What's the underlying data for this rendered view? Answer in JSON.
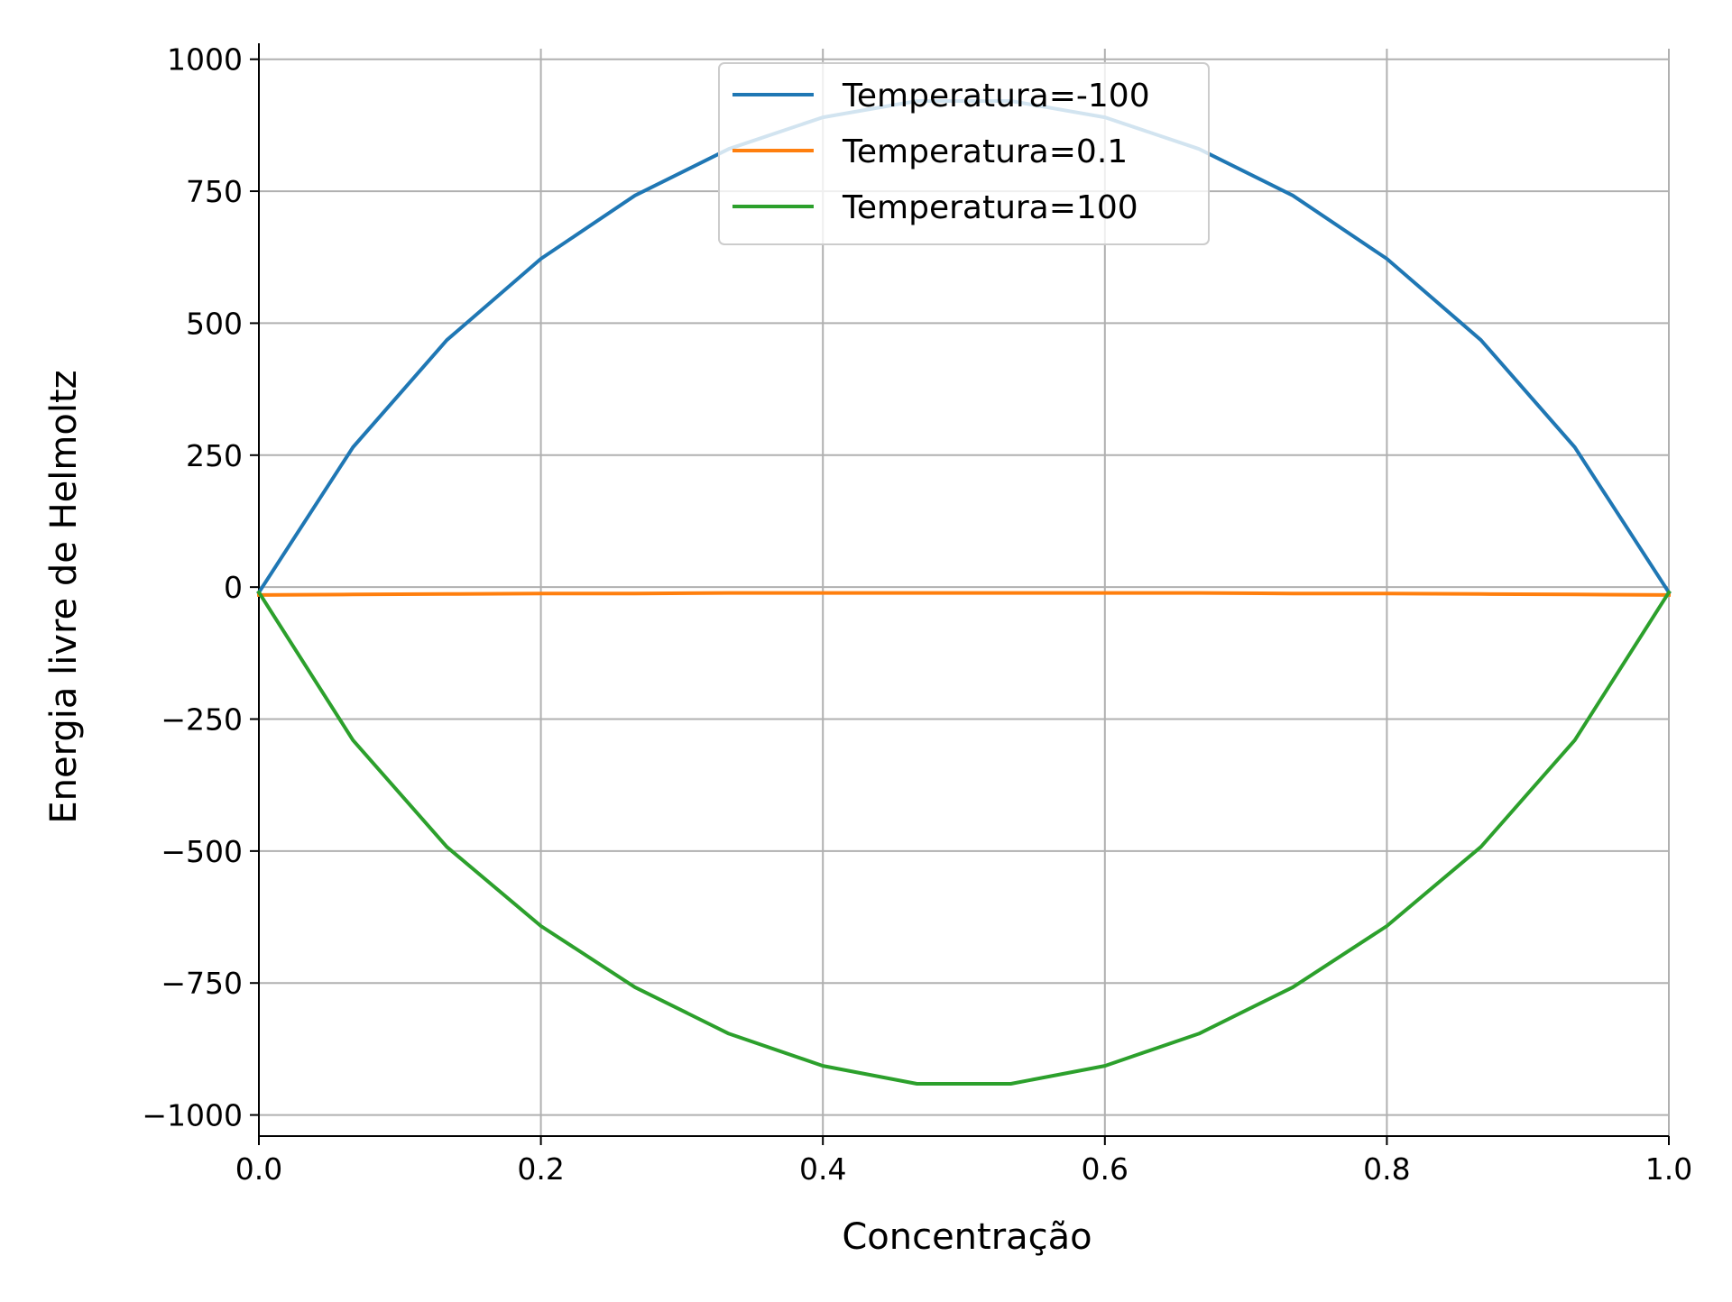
{
  "chart_data": {
    "type": "line",
    "title": "",
    "xlabel": "Concentração",
    "ylabel": "Energia livre de Helmoltz",
    "xlim": [
      0.0,
      1.0
    ],
    "ylim": [
      -1040,
      1020
    ],
    "grid": true,
    "legend_position": "upper center",
    "xticks": [
      0.0,
      0.2,
      0.4,
      0.6,
      0.8,
      1.0
    ],
    "xtick_labels": [
      "0.0",
      "0.2",
      "0.4",
      "0.6",
      "0.8",
      "1.0"
    ],
    "yticks": [
      1000,
      750,
      500,
      250,
      0,
      -250,
      -500,
      -750,
      -1000
    ],
    "ytick_labels": [
      "1000",
      "750",
      "500",
      "250",
      "0",
      "−250",
      "−500",
      "−750",
      "−1000"
    ],
    "x": [
      0.0,
      0.0667,
      0.1333,
      0.2,
      0.2667,
      0.3333,
      0.4,
      0.4667,
      0.5333,
      0.6,
      0.6667,
      0.7333,
      0.8,
      0.8667,
      0.9333,
      1.0
    ],
    "series": [
      {
        "name": "Temperatura=-100",
        "color": "#1f77b4",
        "values": [
          -10,
          265,
          468,
          622,
          742,
          830,
          890,
          921,
          921,
          890,
          830,
          742,
          622,
          468,
          265,
          -10
        ]
      },
      {
        "name": "Temperatura=0.1",
        "color": "#ff7f0e",
        "values": [
          -15,
          -14,
          -13,
          -12,
          -12,
          -11,
          -11,
          -11,
          -11,
          -11,
          -11,
          -12,
          -12,
          -13,
          -14,
          -15
        ]
      },
      {
        "name": "Temperatura=100",
        "color": "#2ca02c",
        "values": [
          -10,
          -290,
          -492,
          -642,
          -758,
          -846,
          -907,
          -941,
          -941,
          -907,
          -846,
          -758,
          -642,
          -492,
          -290,
          -10
        ]
      }
    ]
  }
}
